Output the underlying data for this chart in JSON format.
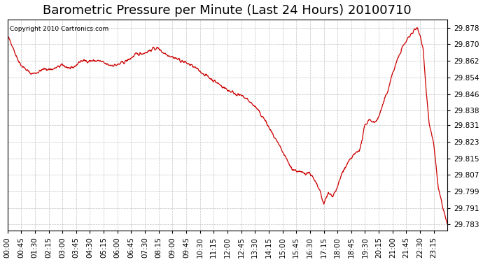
{
  "title": "Barometric Pressure per Minute (Last 24 Hours) 20100710",
  "copyright": "Copyright 2010 Cartronics.com",
  "line_color": "#cc0000",
  "background_color": "#ffffff",
  "grid_color": "#bbbbbb",
  "yticks": [
    29.783,
    29.791,
    29.799,
    29.807,
    29.815,
    29.823,
    29.831,
    29.838,
    29.846,
    29.854,
    29.862,
    29.87,
    29.878
  ],
  "ylim": [
    29.78,
    29.882
  ],
  "xtick_labels": [
    "00:00",
    "00:45",
    "01:30",
    "02:15",
    "03:00",
    "03:45",
    "04:30",
    "05:15",
    "06:00",
    "06:45",
    "07:30",
    "08:15",
    "09:00",
    "09:45",
    "10:30",
    "11:15",
    "12:00",
    "12:45",
    "13:30",
    "14:15",
    "15:00",
    "15:45",
    "16:30",
    "17:15",
    "18:00",
    "18:45",
    "19:30",
    "20:15",
    "21:00",
    "21:45",
    "22:30",
    "23:15"
  ],
  "num_points": 1440,
  "title_fontsize": 13,
  "tick_fontsize": 7.5,
  "times_key": [
    0,
    15,
    30,
    45,
    60,
    75,
    90,
    120,
    150,
    180,
    210,
    240,
    270,
    300,
    330,
    360,
    390,
    420,
    450,
    480,
    495,
    510,
    540,
    570,
    600,
    630,
    660,
    690,
    720,
    750,
    780,
    810,
    840,
    870,
    900,
    930,
    960,
    990,
    1005,
    1020,
    1035,
    1050,
    1065,
    1080,
    1095,
    1125,
    1155,
    1170,
    1185,
    1200,
    1215,
    1245,
    1260,
    1290,
    1320,
    1340,
    1350,
    1360,
    1370,
    1380,
    1395,
    1410,
    1439
  ],
  "vals_key": [
    29.874,
    29.87,
    29.864,
    29.86,
    29.858,
    29.856,
    29.856,
    29.858,
    29.858,
    29.86,
    29.858,
    29.862,
    29.862,
    29.862,
    29.86,
    29.86,
    29.862,
    29.865,
    29.866,
    29.868,
    29.868,
    29.866,
    29.864,
    29.862,
    29.86,
    29.857,
    29.854,
    29.851,
    29.848,
    29.846,
    29.844,
    29.84,
    29.834,
    29.826,
    29.818,
    29.81,
    29.808,
    29.808,
    29.804,
    29.8,
    29.793,
    29.798,
    29.797,
    29.801,
    29.808,
    29.815,
    29.82,
    29.831,
    29.834,
    29.832,
    29.835,
    29.848,
    29.856,
    29.868,
    29.875,
    29.878,
    29.875,
    29.868,
    29.848,
    29.831,
    29.822,
    29.8,
    29.783
  ]
}
